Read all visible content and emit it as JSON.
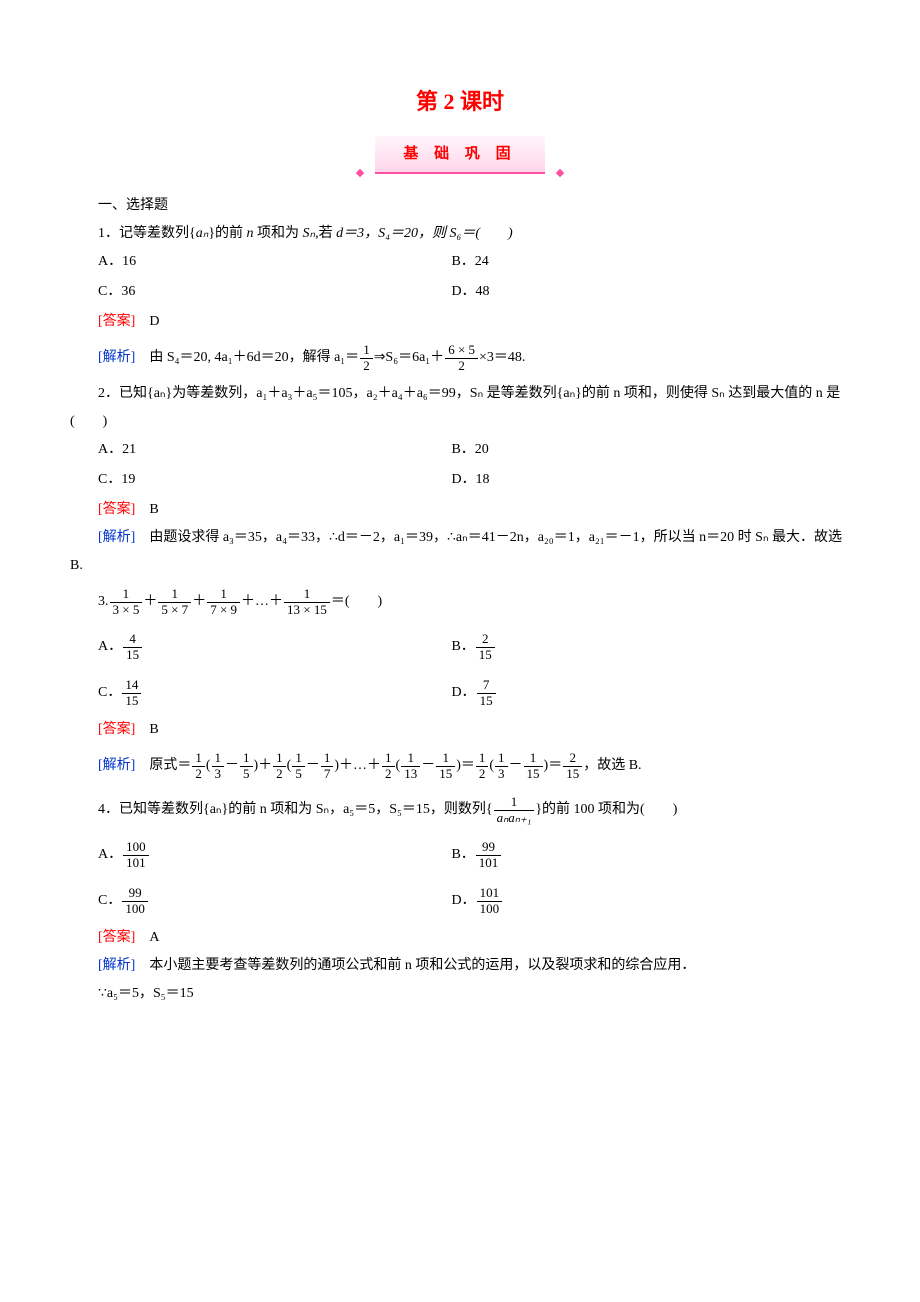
{
  "title": "第 2 课时",
  "banner": "基 础 巩 固",
  "section_heading": "一、选择题",
  "q1": {
    "stem_pre": "1．记等差数列{",
    "stem_seq": "aₙ",
    "stem_mid": "}的前 ",
    "stem_n": "n",
    "stem_mid2": " 项和为 ",
    "stem_s": "Sₙ",
    "stem_post": ",若 ",
    "stem_cond": "d＝3，S₄＝20，则 S₆＝(　　)",
    "optA": "A．16",
    "optB": "B．24",
    "optC": "C．36",
    "optD": "D．48",
    "answer_label": "[答案]",
    "answer": "　D",
    "analysis_label": "[解析]",
    "analysis_1": "　由 S₄＝20, 4a₁＋6d＝20，解得 a₁＝",
    "analysis_frac1_num": "1",
    "analysis_frac1_den": "2",
    "analysis_2": "⇒S₆＝6a₁＋",
    "analysis_frac2_num": "6 × 5",
    "analysis_frac2_den": "2",
    "analysis_3": "×3＝48."
  },
  "q2": {
    "stem": "2．已知{aₙ}为等差数列，a₁＋a₃＋a₅＝105，a₂＋a₄＋a₆＝99，Sₙ 是等差数列{aₙ}的前 n 项和，则使得 Sₙ 达到最大值的 n 是(　　)",
    "optA": "A．21",
    "optB": "B．20",
    "optC": "C．19",
    "optD": "D．18",
    "answer_label": "[答案]",
    "answer": "　B",
    "analysis_label": "[解析]",
    "analysis": "　由题设求得 a₃＝35，a₄＝33，∴d＝－2，a₁＝39，∴aₙ＝41－2n，a₂₀＝1，a₂₁＝－1，所以当 n＝20 时 Sₙ 最大．故选 B."
  },
  "q3": {
    "stem_num": "3.",
    "t1_num": "1",
    "t1_den": "3 × 5",
    "plus": "＋",
    "t2_num": "1",
    "t2_den": "5 × 7",
    "t3_num": "1",
    "t3_den": "7 × 9",
    "dots": "＋…＋",
    "t4_num": "1",
    "t4_den": "13 × 15",
    "tail": "＝(　　)",
    "optA_pre": "A．",
    "optA_num": "4",
    "optA_den": "15",
    "optB_pre": "B．",
    "optB_num": "2",
    "optB_den": "15",
    "optC_pre": "C．",
    "optC_num": "14",
    "optC_den": "15",
    "optD_pre": "D．",
    "optD_num": "7",
    "optD_den": "15",
    "answer_label": "[答案]",
    "answer": "　B",
    "analysis_label": "[解析]",
    "an1": "　原式＝",
    "half_num": "1",
    "half_den": "2",
    "lp": "(",
    "f13_num": "1",
    "f13_den": "3",
    "minus": "－",
    "f15_num": "1",
    "f15_den": "5",
    "rp": ")",
    "f15b_num": "1",
    "f15b_den": "5",
    "f17_num": "1",
    "f17_den": "7",
    "an_dots": "＋…＋",
    "f113_num": "1",
    "f113_den": "13",
    "f115_num": "1",
    "f115_den": "15",
    "eq": "＝",
    "f215_num": "2",
    "f215_den": "15",
    "an_tail": "，故选 B."
  },
  "q4": {
    "stem_1": "4．已知等差数列{aₙ}的前 n 项和为 Sₙ，a₅＝5，S₅＝15，则数列{",
    "stem_frac_num": "1",
    "stem_frac_den": "aₙaₙ₊₁",
    "stem_2": "}的前 100 项和为(　　)",
    "optA_pre": "A．",
    "optA_num": "100",
    "optA_den": "101",
    "optB_pre": "B．",
    "optB_num": "99",
    "optB_den": "101",
    "optC_pre": "C．",
    "optC_num": "99",
    "optC_den": "100",
    "optD_pre": "D．",
    "optD_num": "101",
    "optD_den": "100",
    "answer_label": "[答案]",
    "answer": "　A",
    "analysis_label": "[解析]",
    "analysis": "　本小题主要考查等差数列的通项公式和前 n 项和公式的运用，以及裂项求和的综合应用．",
    "line2": "∵a₅＝5，S₅＝15"
  },
  "colors": {
    "title": "#ff0000",
    "answer_label": "#ff0000",
    "analysis_label": "#0033cc",
    "banner_border": "#ff4fa0",
    "text": "#000000",
    "background": "#ffffff"
  }
}
